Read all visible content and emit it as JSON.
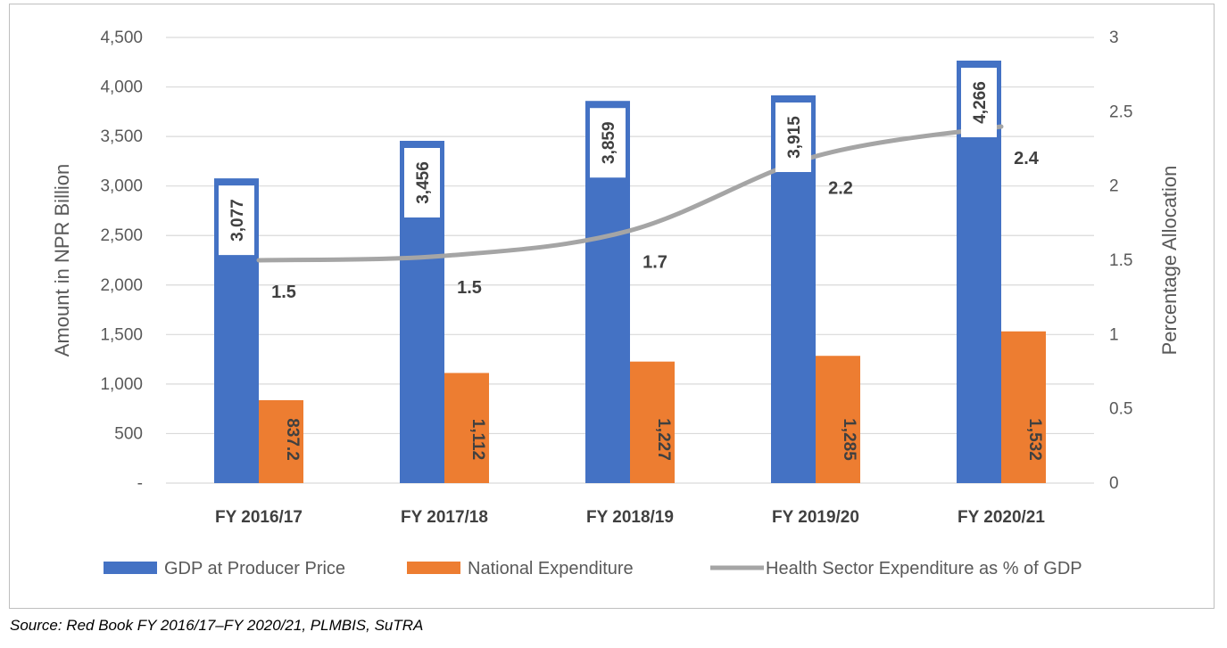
{
  "source_note": "Source: Red Book FY 2016/17–FY 2020/21, PLMBIS, SuTRA",
  "chart_data": {
    "type": "bar",
    "categories": [
      "FY 2016/17",
      "FY 2017/18",
      "FY 2018/19",
      "FY 2019/20",
      "FY 2020/21"
    ],
    "series": [
      {
        "name": "GDP at Producer Price",
        "kind": "bar",
        "axis": "left",
        "color": "#4472C4",
        "values": [
          3077,
          3456,
          3859,
          3915,
          4266
        ],
        "labels": [
          "3,077",
          "3,456",
          "3,859",
          "3,915",
          "4,266"
        ]
      },
      {
        "name": "National Expenditure",
        "kind": "bar",
        "axis": "left",
        "color": "#ED7D31",
        "values": [
          837.2,
          1112,
          1227,
          1285,
          1532
        ],
        "labels": [
          "837.2",
          "1,112",
          "1,227",
          "1,285",
          "1,532"
        ]
      },
      {
        "name": "Health Sector Expenditure as % of GDP",
        "kind": "line",
        "axis": "right",
        "color": "#A5A5A5",
        "values": [
          1.5,
          1.53,
          1.7,
          2.2,
          2.4
        ],
        "labels": [
          "1.5",
          "1.5",
          "1.7",
          "2.2",
          "2.4"
        ]
      }
    ],
    "ylabel": "Amount in NPR Billion",
    "y2label": "Percentage Allocation",
    "ylim": [
      0,
      4500
    ],
    "y2lim": [
      0,
      3
    ],
    "yticks": [
      0,
      500,
      1000,
      1500,
      2000,
      2500,
      3000,
      3500,
      4000,
      4500
    ],
    "yticklabels": [
      "-",
      "500",
      "1,000",
      "1,500",
      "2,000",
      "2,500",
      "3,000",
      "3,500",
      "4,000",
      "4,500"
    ],
    "y2ticks": [
      0,
      0.5,
      1,
      1.5,
      2,
      2.5,
      3
    ],
    "y2ticklabels": [
      "0",
      "0.5",
      "1",
      "1.5",
      "2",
      "2.5",
      "3"
    ],
    "grid": true,
    "legend_position": "bottom"
  }
}
